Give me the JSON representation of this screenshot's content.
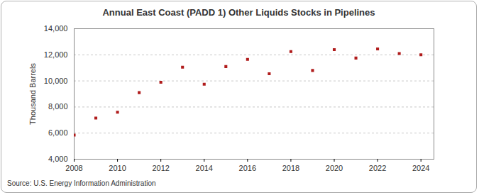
{
  "chart_data": {
    "type": "scatter",
    "title": "Annual East Coast (PADD 1) Other Liquids Stocks in Pipelines",
    "y_label": "Thousand Barrels",
    "source": "Source: U.S. Energy Information Administration",
    "x": [
      2008,
      2009,
      2010,
      2011,
      2012,
      2013,
      2014,
      2015,
      2016,
      2017,
      2018,
      2019,
      2020,
      2021,
      2022,
      2023,
      2024
    ],
    "values": [
      5850,
      7150,
      7600,
      9100,
      9900,
      11050,
      9750,
      11100,
      11650,
      10550,
      12250,
      10800,
      12400,
      11750,
      12450,
      12100,
      12000
    ],
    "color": "#b01c1c",
    "marker": "square",
    "xlim": [
      2008,
      2024.6
    ],
    "xticks": [
      2008,
      2010,
      2012,
      2014,
      2016,
      2018,
      2020,
      2022,
      2024
    ],
    "ylim": [
      4000,
      14000
    ],
    "yticks": [
      {
        "value": 4000,
        "label": "4,000"
      },
      {
        "value": 6000,
        "label": "6,000"
      },
      {
        "value": 8000,
        "label": "8,000"
      },
      {
        "value": 10000,
        "label": "10,000"
      },
      {
        "value": 12000,
        "label": "12,000"
      },
      {
        "value": 14000,
        "label": "14,000"
      }
    ],
    "grid": true
  }
}
